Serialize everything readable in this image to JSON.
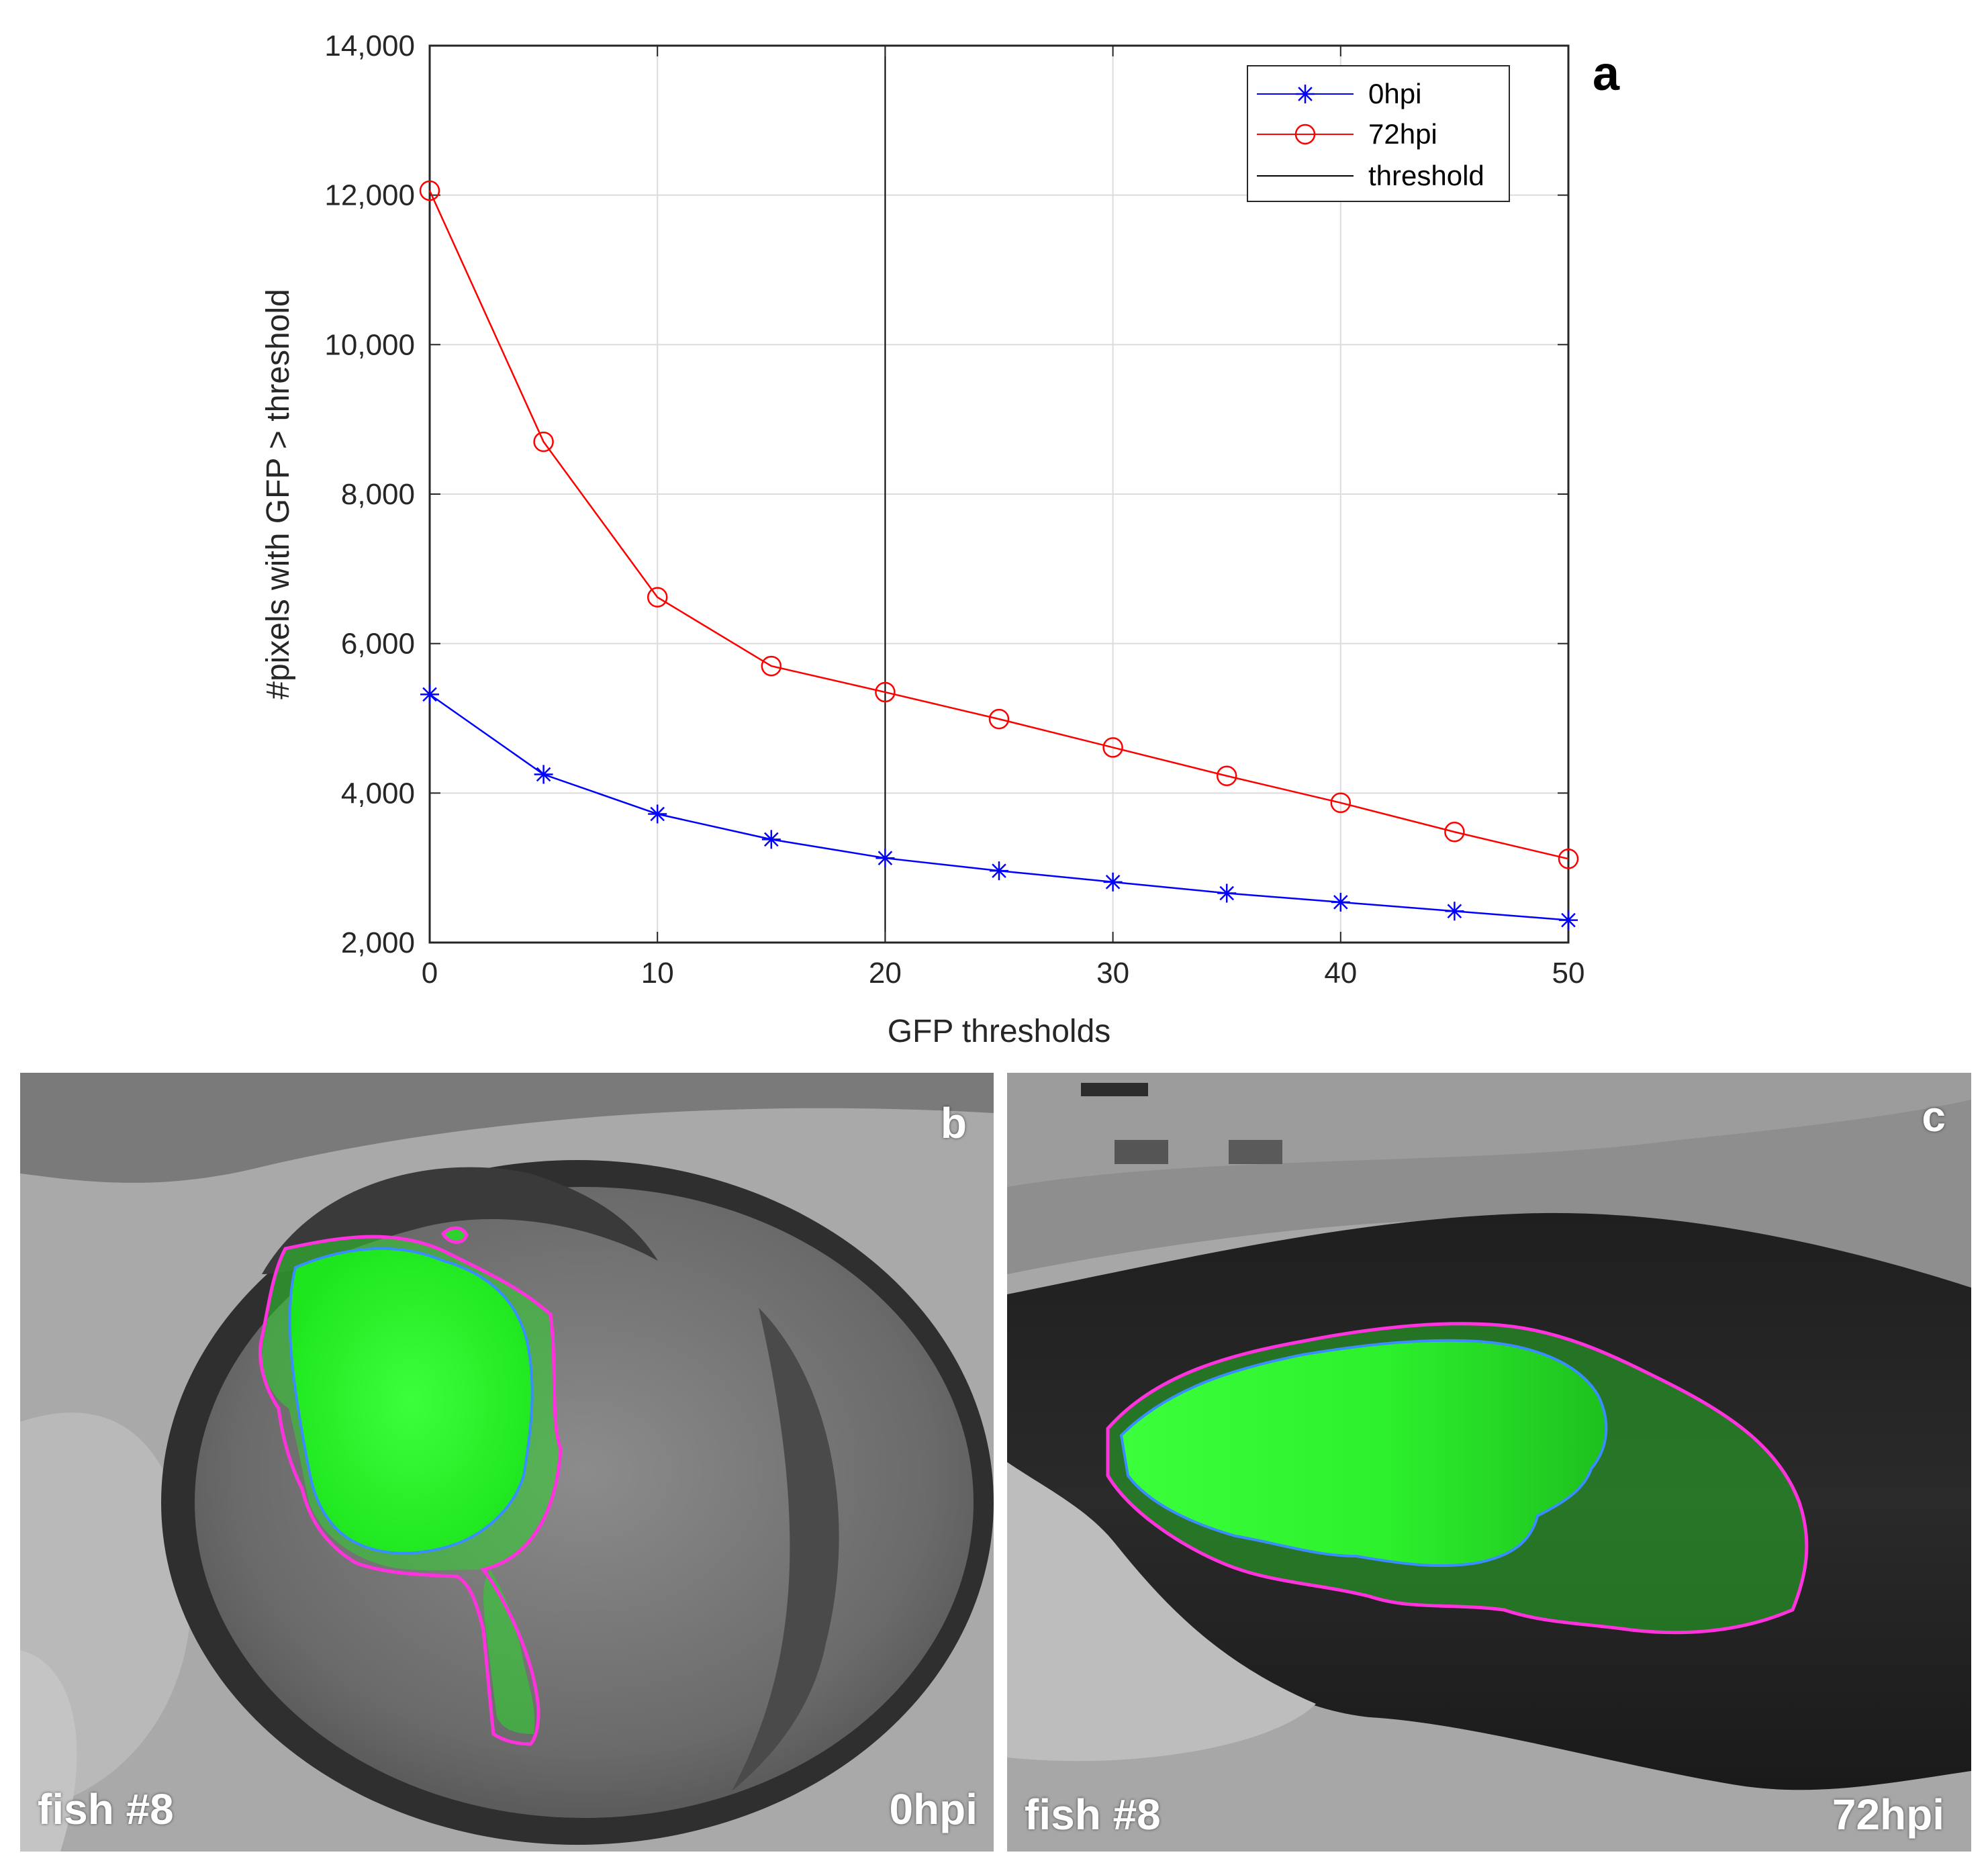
{
  "chart_data": {
    "type": "line",
    "panel_label": "a",
    "xlabel": "GFP thresholds",
    "ylabel": "#pixels with GFP > threshold",
    "xlim": [
      0,
      50
    ],
    "ylim": [
      2000,
      14000
    ],
    "xticks": [
      0,
      10,
      20,
      30,
      40,
      50
    ],
    "yticks": [
      2000,
      4000,
      6000,
      8000,
      10000,
      12000,
      14000
    ],
    "ytick_labels": [
      "2,000",
      "4,000",
      "6,000",
      "8,000",
      "10,000",
      "12,000",
      "14,000"
    ],
    "grid": true,
    "legend_position": "top-right",
    "x": [
      0,
      5,
      10,
      15,
      20,
      25,
      30,
      35,
      40,
      45,
      50
    ],
    "series": [
      {
        "name": "0hpi",
        "color": "#0000ff",
        "marker": "asterisk",
        "values": [
          5320,
          4250,
          3720,
          3380,
          3130,
          2960,
          2810,
          2660,
          2540,
          2420,
          2300
        ]
      },
      {
        "name": "72hpi",
        "color": "#ff0000",
        "marker": "circle",
        "values": [
          12060,
          8700,
          6620,
          5700,
          5350,
          4990,
          4610,
          4230,
          3870,
          3480,
          3120
        ]
      }
    ],
    "threshold": {
      "name": "threshold",
      "x": 20,
      "color": "#000000"
    }
  },
  "panels": {
    "b": {
      "letter": "b",
      "fish_label": "fish #8",
      "time_label": "0hpi"
    },
    "c": {
      "letter": "c",
      "fish_label": "fish #8",
      "time_label": "72hpi"
    }
  }
}
